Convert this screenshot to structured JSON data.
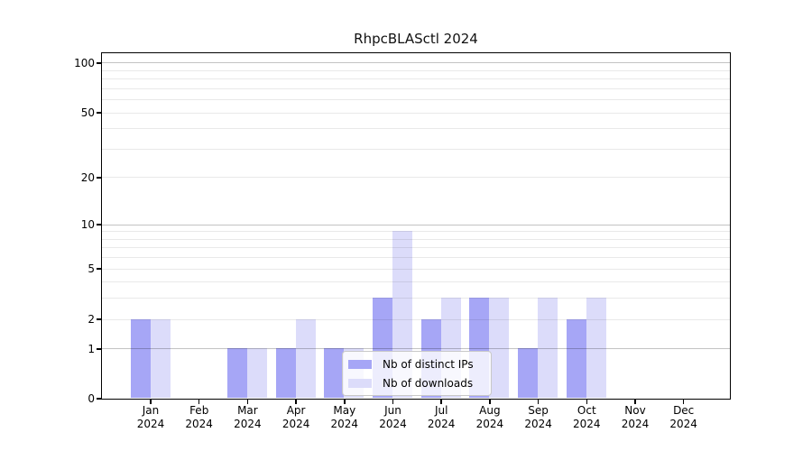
{
  "chart_data": {
    "type": "bar",
    "title": "RhpcBLASctl 2024",
    "categories": [
      "Jan 2024",
      "Feb 2024",
      "Mar 2024",
      "Apr 2024",
      "May 2024",
      "Jun 2024",
      "Jul 2024",
      "Aug 2024",
      "Sep 2024",
      "Oct 2024",
      "Nov 2024",
      "Dec 2024"
    ],
    "series": [
      {
        "name": "Nb of distinct IPs",
        "color": "#a6a6f6",
        "values": [
          2,
          0,
          1,
          1,
          1,
          3,
          2,
          3,
          1,
          2,
          0,
          0
        ]
      },
      {
        "name": "Nb of downloads",
        "color": "#dcdcfa",
        "values": [
          2,
          0,
          1,
          2,
          1,
          9,
          3,
          3,
          3,
          3,
          0,
          0
        ]
      }
    ],
    "y_scale": "log10(value+1)",
    "y_ticks": [
      0,
      1,
      2,
      5,
      10,
      20,
      50,
      100
    ],
    "major_grid_values": [
      1,
      10,
      100
    ],
    "minor_grid_values": [
      2,
      3,
      4,
      5,
      6,
      7,
      8,
      9,
      20,
      30,
      40,
      50,
      60,
      70,
      80,
      90
    ],
    "ylim": [
      0,
      115
    ],
    "grid": true,
    "legend_position": "lower center",
    "colors": {
      "major_grid": "#c3c3c3",
      "minor_grid": "#ebebeb",
      "axis": "#000000",
      "background": "#ffffff"
    }
  }
}
